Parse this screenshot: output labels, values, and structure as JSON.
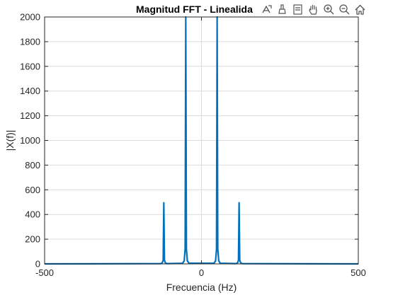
{
  "colors": {
    "line": "#0072BD",
    "grid": "#dcdcdc",
    "axis": "#262626",
    "zero_line": "#c8c8c8",
    "icon": "#555555"
  },
  "toolbar": [
    {
      "icon": "export-icon"
    },
    {
      "icon": "brush-icon"
    },
    {
      "icon": "datatip-icon"
    },
    {
      "icon": "pan-hand-icon"
    },
    {
      "icon": "zoom-in-icon"
    },
    {
      "icon": "zoom-out-icon"
    },
    {
      "icon": "home-icon"
    }
  ],
  "chart_data": {
    "type": "line",
    "title": "Magnitud FFT - Linealidad",
    "title_visible": "Magnitud FFT - Linealida",
    "xlabel": "Frecuencia (Hz)",
    "ylabel": "|X(f)|",
    "xlim": [
      -500,
      500
    ],
    "ylim": [
      0,
      2000
    ],
    "xticks": [
      -500,
      0,
      500
    ],
    "yticks": [
      0,
      200,
      400,
      600,
      800,
      1000,
      1200,
      1400,
      1600,
      1800,
      2000
    ],
    "grid": true,
    "series": [
      {
        "x": [
          -500,
          -130,
          -125,
          -122,
          -120,
          -118,
          -115,
          -110,
          -60,
          -55,
          -52,
          -50,
          -48,
          -45,
          -40,
          40,
          45,
          48,
          50,
          52,
          55,
          60,
          110,
          115,
          118,
          120,
          122,
          125,
          130,
          500
        ],
        "y": [
          0,
          2,
          8,
          30,
          495,
          30,
          8,
          2,
          5,
          25,
          120,
          2000,
          120,
          25,
          5,
          5,
          25,
          120,
          2000,
          120,
          25,
          5,
          2,
          8,
          30,
          495,
          30,
          8,
          2,
          0
        ]
      }
    ]
  }
}
